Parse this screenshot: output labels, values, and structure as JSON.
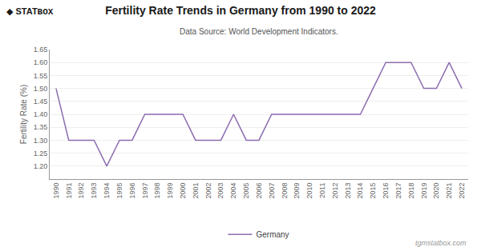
{
  "chart_data": {
    "type": "line",
    "title": "Fertility Rate Trends in Germany from 1990 to 2022",
    "subtitle": "Data Source: World Development Indicators.",
    "ylabel": "Fertility Rate (%)",
    "annotations": [
      "◆",
      "STAT",
      "BOX",
      "tgmstatbox.com"
    ],
    "x": [
      1990,
      1991,
      1992,
      1993,
      1994,
      1995,
      1996,
      1997,
      1998,
      1999,
      2000,
      2001,
      2002,
      2003,
      2004,
      2005,
      2006,
      2007,
      2008,
      2009,
      2010,
      2011,
      2012,
      2013,
      2014,
      2015,
      2016,
      2017,
      2018,
      2019,
      2020,
      2021,
      2022
    ],
    "series": [
      {
        "name": "Germany",
        "color": "#8B6DB0",
        "values": [
          1.5,
          1.3,
          1.3,
          1.3,
          1.2,
          1.3,
          1.3,
          1.4,
          1.4,
          1.4,
          1.4,
          1.3,
          1.3,
          1.3,
          1.4,
          1.3,
          1.3,
          1.4,
          1.4,
          1.4,
          1.4,
          1.4,
          1.4,
          1.4,
          1.4,
          1.5,
          1.6,
          1.6,
          1.6,
          1.5,
          1.5,
          1.6,
          1.5
        ]
      }
    ],
    "xlim": [
      1989.5,
      2022.5
    ],
    "xticks": [
      1990,
      1991,
      1992,
      1993,
      1994,
      1995,
      1996,
      1997,
      1998,
      1999,
      2000,
      2001,
      2002,
      2003,
      2004,
      2005,
      2006,
      2007,
      2008,
      2009,
      2010,
      2011,
      2012,
      2013,
      2014,
      2015,
      2016,
      2017,
      2018,
      2019,
      2020,
      2021,
      2022
    ],
    "ylim": [
      1.15,
      1.65
    ],
    "yticks": [
      {
        "value": 1.2,
        "label": "1.20"
      },
      {
        "value": 1.25,
        "label": "1.25"
      },
      {
        "value": 1.3,
        "label": "1.30"
      },
      {
        "value": 1.35,
        "label": "1.35"
      },
      {
        "value": 1.4,
        "label": "1.40"
      },
      {
        "value": 1.45,
        "label": "1.45"
      },
      {
        "value": 1.5,
        "label": "1.50"
      },
      {
        "value": 1.55,
        "label": "1.55"
      },
      {
        "value": 1.6,
        "label": "1.60"
      },
      {
        "value": 1.65,
        "label": "1.65"
      }
    ],
    "grid": "y",
    "legend": "bottom"
  }
}
